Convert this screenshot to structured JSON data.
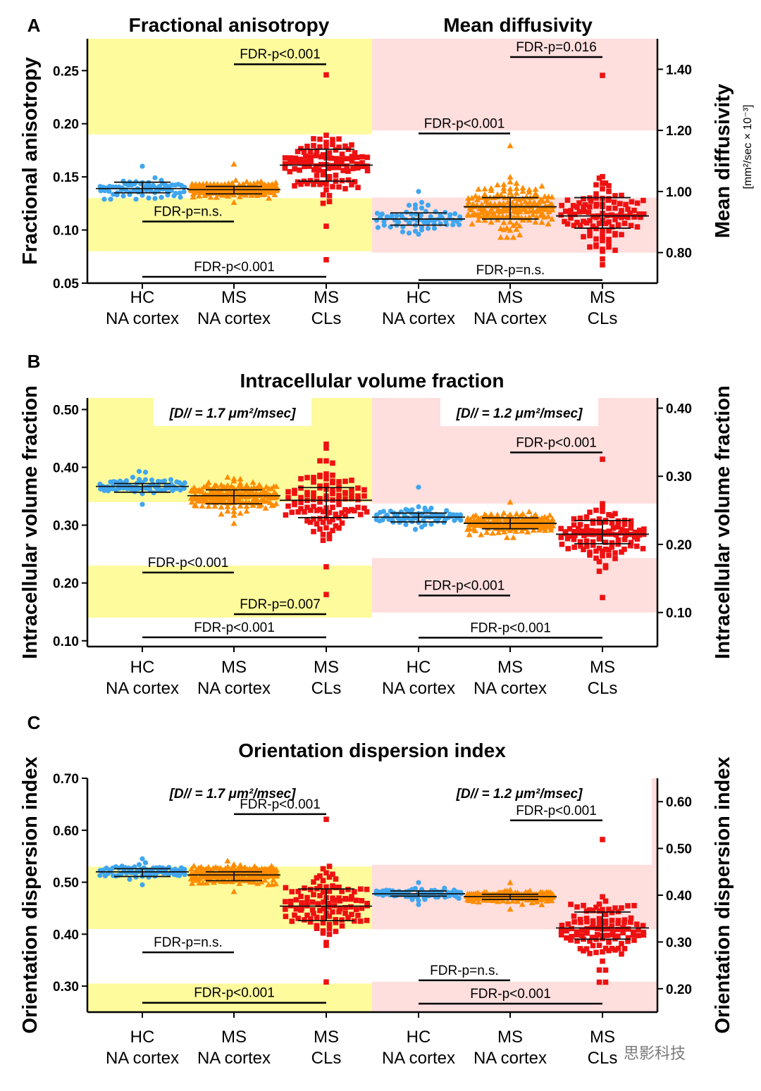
{
  "colors": {
    "hc": "#3fa6ef",
    "ms_na": "#ff8c00",
    "ms_cl": "#ee1111",
    "bg_left": "#fdfb9c",
    "bg_right": "#ffdede"
  },
  "categories": [
    [
      "HC",
      "NA cortex"
    ],
    [
      "MS",
      "NA cortex"
    ],
    [
      "MS",
      "CLs"
    ]
  ],
  "watermark": "思影科技",
  "chart_data": [
    {
      "panel": "A",
      "type": "scatter",
      "left": {
        "title": "Fractional anisotropy",
        "ylabel": "Fractional anisotropy",
        "ylim": [
          0.05,
          0.28
        ],
        "yticks": [
          "0.05",
          "0.10",
          "0.15",
          "0.20",
          "0.25"
        ],
        "bands": [
          [
            0.08,
            0.13
          ],
          [
            0.19,
            0.28
          ]
        ],
        "groups": [
          {
            "name": "HC NA cortex",
            "marker": "circle",
            "mean": 0.139,
            "sd_lo": 0.135,
            "sd_hi": 0.145,
            "min": 0.129,
            "max": 0.16,
            "n": 70
          },
          {
            "name": "MS NA cortex",
            "marker": "triangle",
            "mean": 0.138,
            "sd_lo": 0.134,
            "sd_hi": 0.141,
            "min": 0.126,
            "max": 0.162,
            "n": 180
          },
          {
            "name": "MS CLs",
            "marker": "square",
            "mean": 0.161,
            "sd_lo": 0.146,
            "sd_hi": 0.176,
            "min": 0.072,
            "max": 0.246,
            "n": 110
          }
        ],
        "comparisons": [
          {
            "label": "FDR-p<0.001",
            "from": 1,
            "to": 2,
            "y": 0.256
          },
          {
            "label": "FDR-p=n.s.",
            "from": 0,
            "to": 1,
            "y": 0.108
          },
          {
            "label": "FDR-p<0.001",
            "from": 0,
            "to": 2,
            "y": 0.056
          }
        ]
      },
      "right": {
        "title": "Mean diffusivity",
        "ylabel": "Mean diffusivity",
        "ylabel_sub": "[mm²/sec × 10⁻³]",
        "ylim": [
          0.7,
          1.5
        ],
        "yticks": [
          "0.80",
          "1.00",
          "1.20",
          "1.40"
        ],
        "bands": [
          [
            0.8,
            0.98
          ],
          [
            1.2,
            1.5
          ]
        ],
        "groups": [
          {
            "name": "HC NA cortex",
            "marker": "circle",
            "mean": 0.91,
            "sd_lo": 0.89,
            "sd_hi": 0.93,
            "min": 0.86,
            "max": 1.0,
            "n": 70
          },
          {
            "name": "MS NA cortex",
            "marker": "triangle",
            "mean": 0.95,
            "sd_lo": 0.91,
            "sd_hi": 0.98,
            "min": 0.85,
            "max": 1.15,
            "n": 180
          },
          {
            "name": "MS CLs",
            "marker": "square",
            "mean": 0.92,
            "sd_lo": 0.88,
            "sd_hi": 0.98,
            "min": 0.76,
            "max": 1.38,
            "n": 110
          }
        ],
        "comparisons": [
          {
            "label": "FDR-p=0.016",
            "from": 1,
            "to": 2,
            "y": 1.44
          },
          {
            "label": "FDR-p<0.001",
            "from": 0,
            "to": 1,
            "y": 1.19
          },
          {
            "label": "FDR-p=n.s.",
            "from": 0,
            "to": 2,
            "y": 0.71
          }
        ]
      }
    },
    {
      "panel": "B",
      "type": "scatter",
      "title": "Intracellular volume fraction",
      "left": {
        "subtitle": "[D// = 1.7 μm²/msec]",
        "ylabel": "Intracellular volume fraction",
        "ylim": [
          0.09,
          0.52
        ],
        "yticks": [
          "0.10",
          "0.20",
          "0.30",
          "0.40",
          "0.50"
        ],
        "bands": [
          [
            0.14,
            0.23
          ],
          [
            0.34,
            0.52
          ]
        ],
        "groups": [
          {
            "name": "HC NA cortex",
            "marker": "circle",
            "mean": 0.367,
            "sd_lo": 0.357,
            "sd_hi": 0.372,
            "min": 0.336,
            "max": 0.393,
            "n": 70
          },
          {
            "name": "MS NA cortex",
            "marker": "triangle",
            "mean": 0.351,
            "sd_lo": 0.337,
            "sd_hi": 0.361,
            "min": 0.303,
            "max": 0.383,
            "n": 180
          },
          {
            "name": "MS CLs",
            "marker": "square",
            "mean": 0.343,
            "sd_lo": 0.313,
            "sd_hi": 0.365,
            "min": 0.18,
            "max": 0.44,
            "n": 110
          }
        ],
        "comparisons": [
          {
            "label": "FDR-p<0.001",
            "from": 0,
            "to": 1,
            "y": 0.218
          },
          {
            "label": "FDR-p=0.007",
            "from": 1,
            "to": 2,
            "y": 0.146
          },
          {
            "label": "FDR-p<0.001",
            "from": 0,
            "to": 2,
            "y": 0.106
          }
        ]
      },
      "right": {
        "subtitle": "[D// = 1.2 μm²/msec]",
        "ylabel": "Intracellular volume fraction",
        "ylim": [
          0.05,
          0.415
        ],
        "yticks": [
          "0.10",
          "0.20",
          "0.30",
          "0.40"
        ],
        "bands": [
          [
            0.1,
            0.18
          ],
          [
            0.26,
            0.415
          ]
        ],
        "groups": [
          {
            "name": "HC NA cortex",
            "marker": "circle",
            "mean": 0.24,
            "sd_lo": 0.233,
            "sd_hi": 0.246,
            "min": 0.222,
            "max": 0.284,
            "n": 70
          },
          {
            "name": "MS NA cortex",
            "marker": "triangle",
            "mean": 0.231,
            "sd_lo": 0.223,
            "sd_hi": 0.239,
            "min": 0.21,
            "max": 0.262,
            "n": 180
          },
          {
            "name": "MS CLs",
            "marker": "square",
            "mean": 0.215,
            "sd_lo": 0.201,
            "sd_hi": 0.235,
            "min": 0.122,
            "max": 0.325,
            "n": 110
          }
        ],
        "comparisons": [
          {
            "label": "FDR-p<0.001",
            "from": 1,
            "to": 2,
            "y": 0.335
          },
          {
            "label": "FDR-p<0.001",
            "from": 0,
            "to": 1,
            "y": 0.125
          },
          {
            "label": "FDR-p<0.001",
            "from": 0,
            "to": 2,
            "y": 0.063
          }
        ]
      }
    },
    {
      "panel": "C",
      "type": "scatter",
      "title": "Orientation dispersion index",
      "left": {
        "subtitle": "[D// = 1.7 μm²/msec]",
        "ylabel": "Orientation dispersion index",
        "ylim": [
          0.25,
          0.7
        ],
        "yticks": [
          "0.30",
          "0.40",
          "0.50",
          "0.60",
          "0.70"
        ],
        "bands": [
          [
            0.25,
            0.305
          ],
          [
            0.41,
            0.53
          ]
        ],
        "groups": [
          {
            "name": "HC NA cortex",
            "marker": "circle",
            "mean": 0.52,
            "sd_lo": 0.511,
            "sd_hi": 0.526,
            "min": 0.495,
            "max": 0.545,
            "n": 70
          },
          {
            "name": "MS NA cortex",
            "marker": "triangle",
            "mean": 0.514,
            "sd_lo": 0.503,
            "sd_hi": 0.52,
            "min": 0.482,
            "max": 0.541,
            "n": 180
          },
          {
            "name": "MS CLs",
            "marker": "square",
            "mean": 0.454,
            "sd_lo": 0.426,
            "sd_hi": 0.487,
            "min": 0.308,
            "max": 0.621,
            "n": 110
          }
        ],
        "comparisons": [
          {
            "label": "FDR-p<0.001",
            "from": 1,
            "to": 2,
            "y": 0.631
          },
          {
            "label": "FDR-p=n.s.",
            "from": 0,
            "to": 1,
            "y": 0.365
          },
          {
            "label": "FDR-p<0.001",
            "from": 0,
            "to": 2,
            "y": 0.268
          }
        ]
      },
      "right": {
        "subtitle": "[D// = 1.2 μm²/msec]",
        "ylabel": "Orientation dispersion index",
        "ylim": [
          0.15,
          0.65
        ],
        "yticks": [
          "0.20",
          "0.30",
          "0.40",
          "0.50",
          "0.60"
        ],
        "bands": [
          [
            0.15,
            0.215
          ],
          [
            0.327,
            0.465
          ],
          [
            0.465,
            0.665
          ]
        ],
        "band_right_only": [
          false,
          false,
          true
        ],
        "groups": [
          {
            "name": "HC NA cortex",
            "marker": "circle",
            "mean": 0.403,
            "sd_lo": 0.398,
            "sd_hi": 0.409,
            "min": 0.38,
            "max": 0.427,
            "n": 70
          },
          {
            "name": "MS NA cortex",
            "marker": "triangle",
            "mean": 0.397,
            "sd_lo": 0.391,
            "sd_hi": 0.402,
            "min": 0.37,
            "max": 0.427,
            "n": 180
          },
          {
            "name": "MS CLs",
            "marker": "square",
            "mean": 0.33,
            "sd_lo": 0.306,
            "sd_hi": 0.364,
            "min": 0.214,
            "max": 0.519,
            "n": 110
          }
        ],
        "comparisons": [
          {
            "label": "FDR-p<0.001",
            "from": 1,
            "to": 2,
            "y": 0.56
          },
          {
            "label": "FDR-p=n.s.",
            "from": 0,
            "to": 1,
            "y": 0.218
          },
          {
            "label": "FDR-p<0.001",
            "from": 0,
            "to": 2,
            "y": 0.168
          }
        ]
      }
    }
  ]
}
